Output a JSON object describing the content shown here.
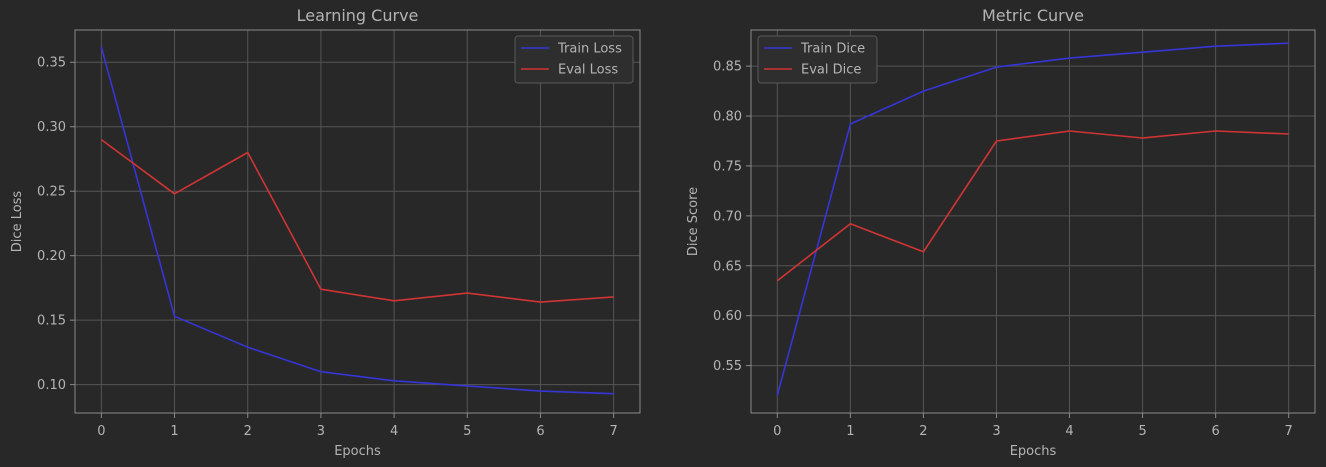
{
  "theme": {
    "background": "#282828",
    "grid": "#555555",
    "axis": "#8a8a8a",
    "text": "#b4b4b4",
    "legend_bg": "#2e2e2e",
    "legend_border": "#5a5a5a"
  },
  "chart_data": [
    {
      "type": "line",
      "title": "Learning Curve",
      "xlabel": "Epochs",
      "ylabel": "Dice Loss",
      "x": [
        0,
        1,
        2,
        3,
        4,
        5,
        6,
        7
      ],
      "xlim": [
        -0.36,
        7.36
      ],
      "ylim": [
        0.078,
        0.375
      ],
      "xticks": [
        0,
        1,
        2,
        3,
        4,
        5,
        6,
        7
      ],
      "yticks": [
        0.1,
        0.15,
        0.2,
        0.25,
        0.3,
        0.35
      ],
      "ytick_labels": [
        "0.10",
        "0.15",
        "0.20",
        "0.25",
        "0.30",
        "0.35"
      ],
      "grid": true,
      "legend_position": "top-right",
      "series": [
        {
          "name": "Train Loss",
          "color": "#3535d8",
          "values": [
            0.362,
            0.153,
            0.129,
            0.11,
            0.103,
            0.099,
            0.095,
            0.093
          ]
        },
        {
          "name": "Eval Loss",
          "color": "#d03434",
          "values": [
            0.29,
            0.248,
            0.28,
            0.174,
            0.165,
            0.171,
            0.164,
            0.168
          ]
        }
      ]
    },
    {
      "type": "line",
      "title": "Metric Curve",
      "xlabel": "Epochs",
      "ylabel": "Dice Score",
      "x": [
        0,
        1,
        2,
        3,
        4,
        5,
        6,
        7
      ],
      "xlim": [
        -0.36,
        7.36
      ],
      "ylim": [
        0.5025,
        0.8862
      ],
      "xticks": [
        0,
        1,
        2,
        3,
        4,
        5,
        6,
        7
      ],
      "yticks": [
        0.55,
        0.6,
        0.65,
        0.7,
        0.75,
        0.8,
        0.85
      ],
      "ytick_labels": [
        "0.55",
        "0.60",
        "0.65",
        "0.70",
        "0.75",
        "0.80",
        "0.85"
      ],
      "grid": true,
      "legend_position": "top-left",
      "series": [
        {
          "name": "Train Dice",
          "color": "#3535d8",
          "values": [
            0.52,
            0.792,
            0.825,
            0.849,
            0.858,
            0.864,
            0.87,
            0.873
          ]
        },
        {
          "name": "Eval Dice",
          "color": "#d03434",
          "values": [
            0.635,
            0.692,
            0.664,
            0.775,
            0.785,
            0.778,
            0.785,
            0.782
          ]
        }
      ]
    }
  ]
}
